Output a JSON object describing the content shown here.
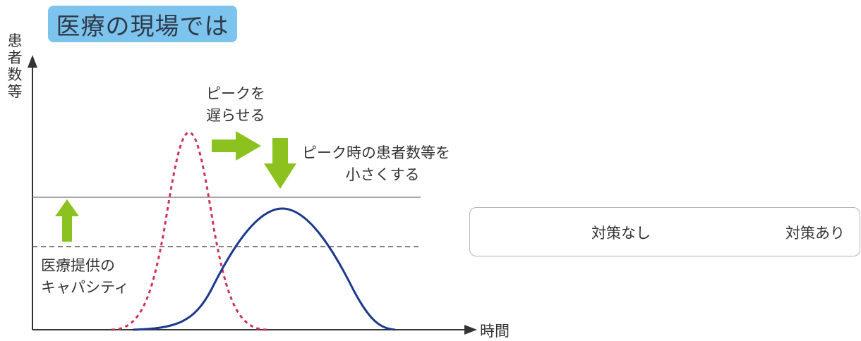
{
  "title": "医療の現場では",
  "y_axis_label": [
    "患",
    "者",
    "数",
    "等"
  ],
  "x_axis_label": "時間",
  "annotations": {
    "delay_peak": [
      "ピークを",
      "遅らせる"
    ],
    "reduce_peak": [
      "ピーク時の患者数等を",
      "小さくする"
    ],
    "capacity": [
      "医療提供の",
      "キャパシティ"
    ]
  },
  "legend": {
    "no_measures": "対策なし",
    "with_measures": "対策あり"
  },
  "colors": {
    "no_measures_line": "#cc3355",
    "with_measures_line": "#1c3a8c",
    "arrow_green": "#8cc21f",
    "title_bg": "#7cc4ee",
    "capacity_line": "#888888",
    "axis": "#333333"
  },
  "icons": [
    "up-arrow-icon",
    "right-arrow-icon",
    "down-arrow-icon"
  ]
}
